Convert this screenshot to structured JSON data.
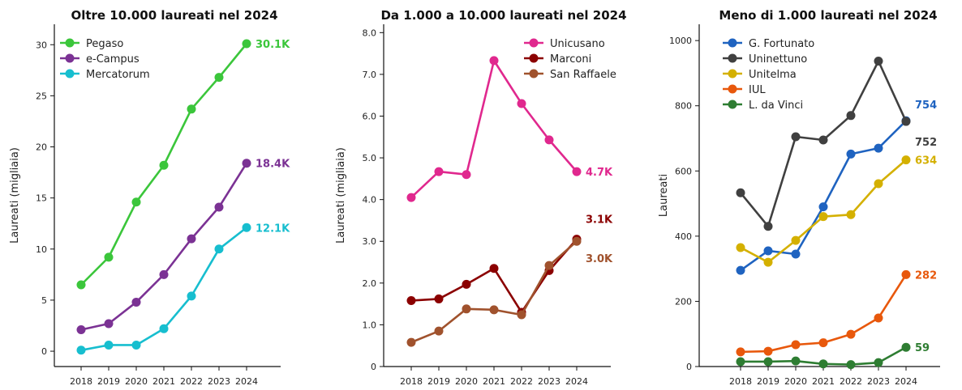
{
  "chart_data": [
    {
      "type": "line",
      "title": "Oltre 10.000 laureati nel 2024",
      "ylabel": "Laureati (migliaia)",
      "x": [
        "2018",
        "2019",
        "2020",
        "2021",
        "2022",
        "2023",
        "2024"
      ],
      "ylim": [
        -1.5,
        32
      ],
      "yticks": [
        0,
        5,
        10,
        15,
        20,
        25,
        30
      ],
      "ytick_labels": [
        "0",
        "5",
        "10",
        "15",
        "20",
        "25",
        "30"
      ],
      "legend": "top-left",
      "series": [
        {
          "name": "Pegaso",
          "color": "#3bc63b",
          "values": [
            6.5,
            9.2,
            14.6,
            18.2,
            23.7,
            26.8,
            30.1
          ],
          "end_label": "30.1K"
        },
        {
          "name": "e-Campus",
          "color": "#7b3294",
          "values": [
            2.1,
            2.7,
            4.8,
            7.5,
            11.0,
            14.1,
            18.4
          ],
          "end_label": "18.4K"
        },
        {
          "name": "Mercatorum",
          "color": "#17becf",
          "values": [
            0.1,
            0.6,
            0.6,
            2.2,
            5.4,
            10.0,
            12.1
          ],
          "end_label": "12.1K"
        }
      ]
    },
    {
      "type": "line",
      "title": "Da 1.000 a 10.000 laureati nel 2024",
      "ylabel": "Laureati (migliaia)",
      "x": [
        "2018",
        "2019",
        "2020",
        "2021",
        "2022",
        "2023",
        "2024"
      ],
      "ylim": [
        0,
        8.2
      ],
      "yticks": [
        0,
        1,
        2,
        3,
        4,
        5,
        6,
        7,
        8
      ],
      "ytick_labels": [
        "0",
        "1.0",
        "2.0",
        "3.0",
        "4.0",
        "5.0",
        "6.0",
        "7.0",
        "8.0"
      ],
      "legend": "top-right",
      "series": [
        {
          "name": "Unicusano",
          "color": "#e0288e",
          "values": [
            4.05,
            4.67,
            4.6,
            7.33,
            6.3,
            5.43,
            4.67
          ],
          "end_label": "4.7K"
        },
        {
          "name": "Marconi",
          "color": "#8b0000",
          "values": [
            1.58,
            1.62,
            1.97,
            2.35,
            1.3,
            2.3,
            3.05
          ],
          "end_label": "3.1K"
        },
        {
          "name": "San Raffaele",
          "color": "#a0522d",
          "values": [
            0.58,
            0.85,
            1.38,
            1.36,
            1.24,
            2.42,
            3.0
          ],
          "end_label": "3.0K"
        }
      ]
    },
    {
      "type": "line",
      "title": "Meno di 1.000 laureati nel 2024",
      "ylabel": "Laureati",
      "x": [
        "2018",
        "2019",
        "2020",
        "2021",
        "2022",
        "2023",
        "2024"
      ],
      "ylim": [
        0,
        1050
      ],
      "yticks": [
        0,
        200,
        400,
        600,
        800,
        1000
      ],
      "ytick_labels": [
        "0",
        "200",
        "400",
        "600",
        "800",
        "1000"
      ],
      "legend": "top-left",
      "series": [
        {
          "name": "G. Fortunato",
          "color": "#1f63c0",
          "values": [
            295,
            355,
            345,
            490,
            652,
            670,
            754
          ],
          "end_label": "754"
        },
        {
          "name": "Uninettuno",
          "color": "#404040",
          "values": [
            533,
            430,
            705,
            695,
            770,
            937,
            752
          ],
          "end_label": "752"
        },
        {
          "name": "Unitelma",
          "color": "#d4b000",
          "values": [
            365,
            320,
            387,
            460,
            466,
            561,
            634
          ],
          "end_label": "634"
        },
        {
          "name": "IUL",
          "color": "#e8580c",
          "values": [
            45,
            47,
            67,
            73,
            99,
            149,
            282
          ],
          "end_label": "282"
        },
        {
          "name": "L. da Vinci",
          "color": "#2e7d32",
          "values": [
            15,
            15,
            17,
            8,
            6,
            12,
            59
          ],
          "end_label": "59"
        }
      ]
    }
  ]
}
